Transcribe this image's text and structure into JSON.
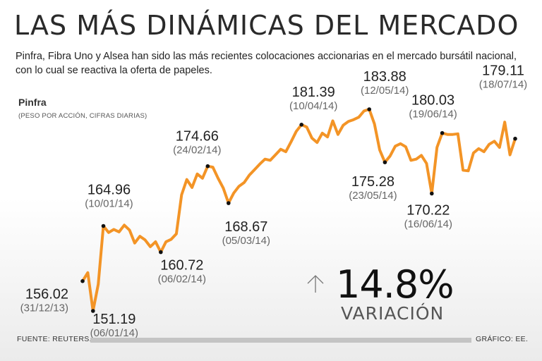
{
  "title": "LAS MÁS DINÁMICAS DEL MERCADO",
  "subtitle": "Pinfra, Fibra Uno y Alsea han sido las más recientes colocaciones accionarias en el mercado bursátil nacional, con lo cual se reactiva la oferta de papeles.",
  "series_label": "Pinfra",
  "series_note": "(PESO POR ACCIÓN, CIFRAS DIARIAS)",
  "variation": {
    "value": "14.8%",
    "label": "VARIACIÓN",
    "icon": "arrow-up-icon"
  },
  "footer": {
    "source": "FUENTE: REUTERS.",
    "credit": "GRÁFICO: EE."
  },
  "colors": {
    "line": "#f39426",
    "marker": "#111111"
  },
  "chart_data": {
    "type": "line",
    "series": [
      {
        "values": [
          156.02,
          157.4,
          151.19,
          155.5,
          164.96,
          163.9,
          164.4,
          164.0,
          165.1,
          164.3,
          162.2,
          163.3,
          162.7,
          161.6,
          162.4,
          160.72,
          162.4,
          162.8,
          163.7,
          170.0,
          172.5,
          171.2,
          173.4,
          172.7,
          174.66,
          174.5,
          172.7,
          171.1,
          168.67,
          170.3,
          171.4,
          172.0,
          173.2,
          174.1,
          175.0,
          175.8,
          175.6,
          176.5,
          177.4,
          177.0,
          178.6,
          180.3,
          181.39,
          181.0,
          179.2,
          178.5,
          180.0,
          179.4,
          182.0,
          179.8,
          181.3,
          181.9,
          182.2,
          182.6,
          183.6,
          183.88,
          181.5,
          177.3,
          175.28,
          176.3,
          177.9,
          178.3,
          177.8,
          175.6,
          175.8,
          176.4,
          175.1,
          170.22,
          177.7,
          180.03,
          179.8,
          179.8,
          179.9,
          174.0,
          173.9,
          176.8,
          177.5,
          177.0,
          178.2,
          178.7,
          177.7,
          181.8,
          176.5,
          179.11
        ]
      }
    ],
    "annotations": [
      {
        "value": "156.02",
        "date": "(31/12/13)"
      },
      {
        "value": "151.19",
        "date": "(06/01/14)"
      },
      {
        "value": "164.96",
        "date": "(10/01/14)"
      },
      {
        "value": "160.72",
        "date": "(06/02/14)"
      },
      {
        "value": "174.66",
        "date": "(24/02/14)"
      },
      {
        "value": "168.67",
        "date": "(05/03/14)"
      },
      {
        "value": "181.39",
        "date": "(10/04/14)"
      },
      {
        "value": "183.88",
        "date": "(12/05/14)"
      },
      {
        "value": "175.28",
        "date": "(23/05/14)"
      },
      {
        "value": "170.22",
        "date": "(16/06/14)"
      },
      {
        "value": "180.03",
        "date": "(19/06/14)"
      },
      {
        "value": "179.11",
        "date": "(18/07/14)"
      }
    ],
    "annotation_indices": [
      0,
      2,
      4,
      15,
      24,
      28,
      42,
      55,
      58,
      67,
      69,
      83
    ],
    "ylim": [
      150,
      185
    ],
    "grid": false,
    "legend": "none"
  }
}
